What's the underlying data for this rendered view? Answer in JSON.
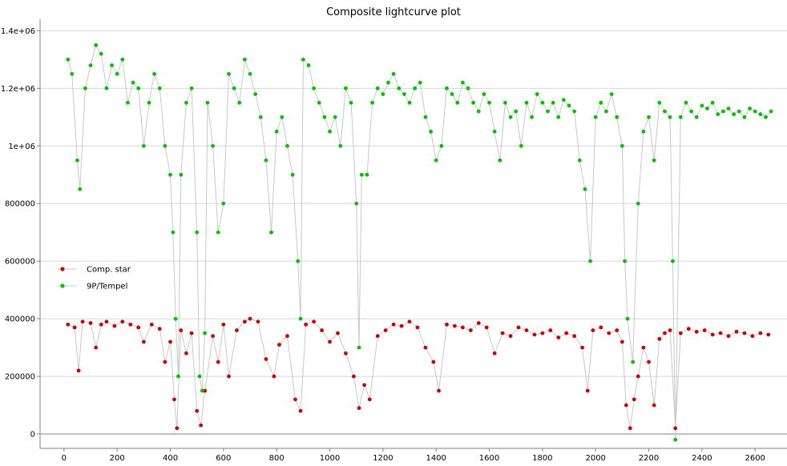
{
  "chart_data": {
    "type": "scatter",
    "title": "Composite lightcurve plot",
    "xlabel": "",
    "ylabel": "",
    "xlim": [
      -90,
      2720
    ],
    "ylim": [
      -50000,
      1440000
    ],
    "x_ticks": [
      0,
      200,
      400,
      600,
      800,
      1000,
      1200,
      1400,
      1600,
      1800,
      2000,
      2200,
      2400,
      2600
    ],
    "y_ticks": [
      {
        "value": 0,
        "label": "0"
      },
      {
        "value": 200000,
        "label": "200000"
      },
      {
        "value": 400000,
        "label": "400000"
      },
      {
        "value": 600000,
        "label": "600000"
      },
      {
        "value": 800000,
        "label": "800000"
      },
      {
        "value": 1000000,
        "label": "1e+06"
      },
      {
        "value": 1200000,
        "label": "1.2e+06"
      },
      {
        "value": 1400000,
        "label": "1.4e+06"
      }
    ],
    "grid": true,
    "legend_position": "middle-left",
    "series": [
      {
        "name": "Comp. star",
        "color": "#cc0000",
        "line_color": "#c8c8c8",
        "points": [
          [
            15,
            380000
          ],
          [
            40,
            370000
          ],
          [
            55,
            220000
          ],
          [
            70,
            390000
          ],
          [
            100,
            385000
          ],
          [
            120,
            300000
          ],
          [
            140,
            380000
          ],
          [
            160,
            390000
          ],
          [
            190,
            375000
          ],
          [
            220,
            390000
          ],
          [
            250,
            380000
          ],
          [
            280,
            370000
          ],
          [
            300,
            320000
          ],
          [
            330,
            380000
          ],
          [
            360,
            365000
          ],
          [
            380,
            250000
          ],
          [
            400,
            320000
          ],
          [
            415,
            120000
          ],
          [
            425,
            20000
          ],
          [
            440,
            360000
          ],
          [
            460,
            280000
          ],
          [
            480,
            350000
          ],
          [
            500,
            80000
          ],
          [
            515,
            30000
          ],
          [
            530,
            150000
          ],
          [
            560,
            340000
          ],
          [
            580,
            250000
          ],
          [
            600,
            380000
          ],
          [
            620,
            200000
          ],
          [
            650,
            360000
          ],
          [
            680,
            390000
          ],
          [
            700,
            400000
          ],
          [
            730,
            390000
          ],
          [
            760,
            260000
          ],
          [
            790,
            200000
          ],
          [
            810,
            310000
          ],
          [
            840,
            340000
          ],
          [
            870,
            120000
          ],
          [
            890,
            80000
          ],
          [
            910,
            380000
          ],
          [
            940,
            390000
          ],
          [
            970,
            360000
          ],
          [
            1000,
            320000
          ],
          [
            1030,
            350000
          ],
          [
            1060,
            280000
          ],
          [
            1090,
            200000
          ],
          [
            1110,
            90000
          ],
          [
            1130,
            170000
          ],
          [
            1150,
            120000
          ],
          [
            1180,
            340000
          ],
          [
            1210,
            360000
          ],
          [
            1240,
            380000
          ],
          [
            1270,
            375000
          ],
          [
            1300,
            390000
          ],
          [
            1330,
            370000
          ],
          [
            1360,
            300000
          ],
          [
            1390,
            250000
          ],
          [
            1410,
            150000
          ],
          [
            1440,
            380000
          ],
          [
            1470,
            375000
          ],
          [
            1500,
            370000
          ],
          [
            1530,
            360000
          ],
          [
            1560,
            385000
          ],
          [
            1590,
            370000
          ],
          [
            1620,
            280000
          ],
          [
            1650,
            350000
          ],
          [
            1680,
            340000
          ],
          [
            1710,
            370000
          ],
          [
            1740,
            360000
          ],
          [
            1770,
            345000
          ],
          [
            1800,
            350000
          ],
          [
            1830,
            360000
          ],
          [
            1860,
            335000
          ],
          [
            1890,
            350000
          ],
          [
            1920,
            340000
          ],
          [
            1950,
            300000
          ],
          [
            1970,
            150000
          ],
          [
            1990,
            360000
          ],
          [
            2020,
            370000
          ],
          [
            2050,
            350000
          ],
          [
            2080,
            360000
          ],
          [
            2100,
            320000
          ],
          [
            2115,
            100000
          ],
          [
            2130,
            20000
          ],
          [
            2145,
            120000
          ],
          [
            2160,
            200000
          ],
          [
            2180,
            300000
          ],
          [
            2200,
            250000
          ],
          [
            2220,
            100000
          ],
          [
            2240,
            330000
          ],
          [
            2260,
            350000
          ],
          [
            2280,
            360000
          ],
          [
            2300,
            20000
          ],
          [
            2320,
            350000
          ],
          [
            2350,
            365000
          ],
          [
            2380,
            355000
          ],
          [
            2410,
            360000
          ],
          [
            2440,
            345000
          ],
          [
            2470,
            350000
          ],
          [
            2500,
            340000
          ],
          [
            2530,
            355000
          ],
          [
            2560,
            350000
          ],
          [
            2590,
            340000
          ],
          [
            2620,
            350000
          ],
          [
            2650,
            345000
          ]
        ]
      },
      {
        "name": "9P/Tempel",
        "color": "#00c000",
        "line_color": "#c8c8c8",
        "points": [
          [
            15,
            1300000
          ],
          [
            30,
            1250000
          ],
          [
            50,
            950000
          ],
          [
            60,
            850000
          ],
          [
            80,
            1200000
          ],
          [
            100,
            1280000
          ],
          [
            120,
            1350000
          ],
          [
            140,
            1320000
          ],
          [
            160,
            1200000
          ],
          [
            180,
            1280000
          ],
          [
            200,
            1250000
          ],
          [
            220,
            1300000
          ],
          [
            240,
            1150000
          ],
          [
            260,
            1220000
          ],
          [
            280,
            1200000
          ],
          [
            300,
            1000000
          ],
          [
            320,
            1150000
          ],
          [
            340,
            1250000
          ],
          [
            360,
            1200000
          ],
          [
            380,
            1000000
          ],
          [
            400,
            900000
          ],
          [
            410,
            700000
          ],
          [
            420,
            400000
          ],
          [
            430,
            200000
          ],
          [
            440,
            900000
          ],
          [
            460,
            1150000
          ],
          [
            480,
            1200000
          ],
          [
            500,
            700000
          ],
          [
            510,
            200000
          ],
          [
            520,
            150000
          ],
          [
            530,
            350000
          ],
          [
            540,
            1150000
          ],
          [
            560,
            1000000
          ],
          [
            580,
            700000
          ],
          [
            600,
            800000
          ],
          [
            620,
            1250000
          ],
          [
            640,
            1200000
          ],
          [
            660,
            1150000
          ],
          [
            680,
            1300000
          ],
          [
            700,
            1250000
          ],
          [
            720,
            1180000
          ],
          [
            740,
            1100000
          ],
          [
            760,
            950000
          ],
          [
            780,
            700000
          ],
          [
            800,
            1050000
          ],
          [
            820,
            1100000
          ],
          [
            840,
            1000000
          ],
          [
            860,
            900000
          ],
          [
            880,
            600000
          ],
          [
            890,
            400000
          ],
          [
            900,
            1300000
          ],
          [
            920,
            1280000
          ],
          [
            940,
            1200000
          ],
          [
            960,
            1150000
          ],
          [
            980,
            1100000
          ],
          [
            1000,
            1050000
          ],
          [
            1020,
            1100000
          ],
          [
            1040,
            1000000
          ],
          [
            1060,
            1200000
          ],
          [
            1080,
            1150000
          ],
          [
            1100,
            800000
          ],
          [
            1110,
            300000
          ],
          [
            1120,
            900000
          ],
          [
            1140,
            900000
          ],
          [
            1160,
            1150000
          ],
          [
            1180,
            1200000
          ],
          [
            1200,
            1180000
          ],
          [
            1220,
            1220000
          ],
          [
            1240,
            1250000
          ],
          [
            1260,
            1200000
          ],
          [
            1280,
            1180000
          ],
          [
            1300,
            1150000
          ],
          [
            1320,
            1200000
          ],
          [
            1340,
            1220000
          ],
          [
            1360,
            1100000
          ],
          [
            1380,
            1050000
          ],
          [
            1400,
            950000
          ],
          [
            1420,
            1000000
          ],
          [
            1440,
            1200000
          ],
          [
            1460,
            1180000
          ],
          [
            1480,
            1150000
          ],
          [
            1500,
            1220000
          ],
          [
            1520,
            1200000
          ],
          [
            1540,
            1150000
          ],
          [
            1560,
            1120000
          ],
          [
            1580,
            1180000
          ],
          [
            1600,
            1150000
          ],
          [
            1620,
            1050000
          ],
          [
            1640,
            950000
          ],
          [
            1660,
            1150000
          ],
          [
            1680,
            1100000
          ],
          [
            1700,
            1120000
          ],
          [
            1720,
            1000000
          ],
          [
            1740,
            1150000
          ],
          [
            1760,
            1100000
          ],
          [
            1780,
            1180000
          ],
          [
            1800,
            1150000
          ],
          [
            1820,
            1120000
          ],
          [
            1840,
            1150000
          ],
          [
            1860,
            1100000
          ],
          [
            1880,
            1160000
          ],
          [
            1900,
            1140000
          ],
          [
            1920,
            1120000
          ],
          [
            1940,
            950000
          ],
          [
            1960,
            850000
          ],
          [
            1980,
            600000
          ],
          [
            2000,
            1100000
          ],
          [
            2020,
            1150000
          ],
          [
            2040,
            1120000
          ],
          [
            2060,
            1180000
          ],
          [
            2080,
            1100000
          ],
          [
            2100,
            1000000
          ],
          [
            2110,
            600000
          ],
          [
            2120,
            400000
          ],
          [
            2140,
            250000
          ],
          [
            2160,
            800000
          ],
          [
            2180,
            1050000
          ],
          [
            2200,
            1100000
          ],
          [
            2220,
            950000
          ],
          [
            2240,
            1150000
          ],
          [
            2260,
            1120000
          ],
          [
            2280,
            1100000
          ],
          [
            2290,
            600000
          ],
          [
            2300,
            -20000
          ],
          [
            2320,
            1100000
          ],
          [
            2340,
            1150000
          ],
          [
            2360,
            1120000
          ],
          [
            2380,
            1100000
          ],
          [
            2400,
            1140000
          ],
          [
            2420,
            1130000
          ],
          [
            2440,
            1150000
          ],
          [
            2460,
            1110000
          ],
          [
            2480,
            1120000
          ],
          [
            2500,
            1130000
          ],
          [
            2520,
            1110000
          ],
          [
            2540,
            1120000
          ],
          [
            2560,
            1100000
          ],
          [
            2580,
            1130000
          ],
          [
            2600,
            1120000
          ],
          [
            2620,
            1110000
          ],
          [
            2640,
            1100000
          ],
          [
            2660,
            1120000
          ]
        ]
      }
    ]
  }
}
